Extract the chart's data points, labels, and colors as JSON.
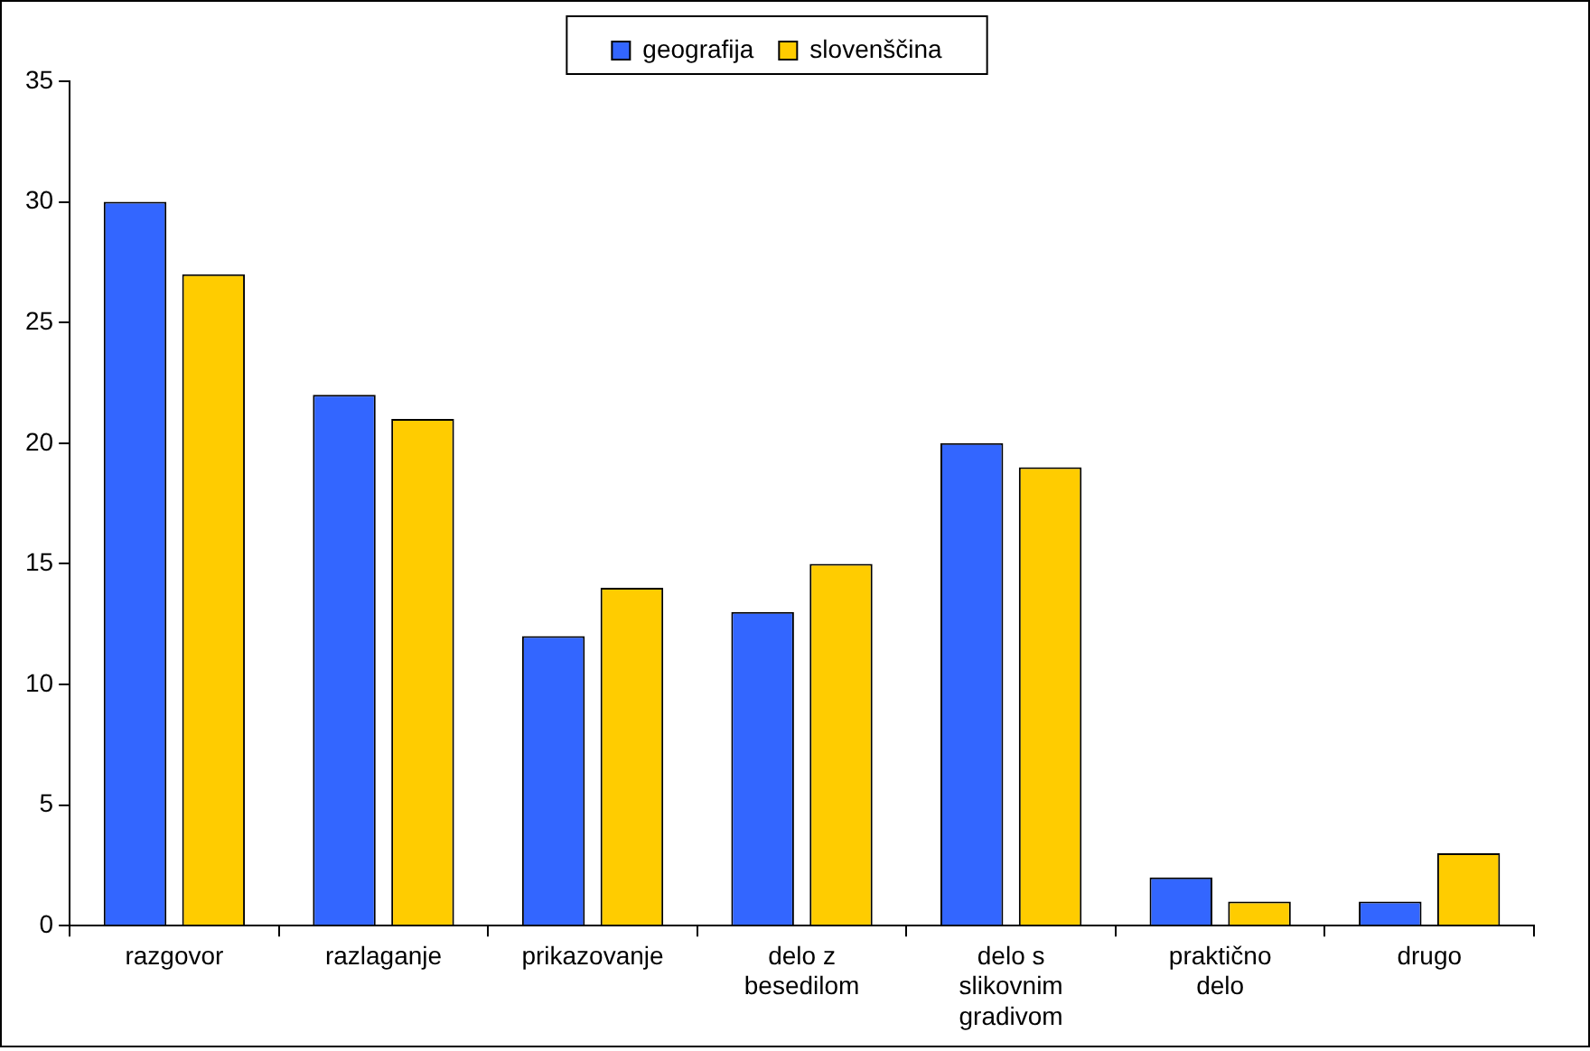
{
  "chart_data": {
    "type": "bar",
    "categories": [
      "razgovor",
      "razlaganje",
      "prikazovanje",
      "delo z besedilom",
      "delo s slikovnim gradivom",
      "praktično delo",
      "drugo"
    ],
    "series": [
      {
        "name": "geografija",
        "color": "#3366ff",
        "values": [
          30,
          22,
          12,
          13,
          20,
          2,
          1
        ]
      },
      {
        "name": "slovenščina",
        "color": "#ffcc00",
        "values": [
          27,
          21,
          14,
          15,
          19,
          1,
          3
        ]
      }
    ],
    "ylim": [
      0,
      35
    ],
    "yticks": [
      0,
      5,
      10,
      15,
      20,
      25,
      30,
      35
    ],
    "grid": false,
    "legend": "top"
  }
}
